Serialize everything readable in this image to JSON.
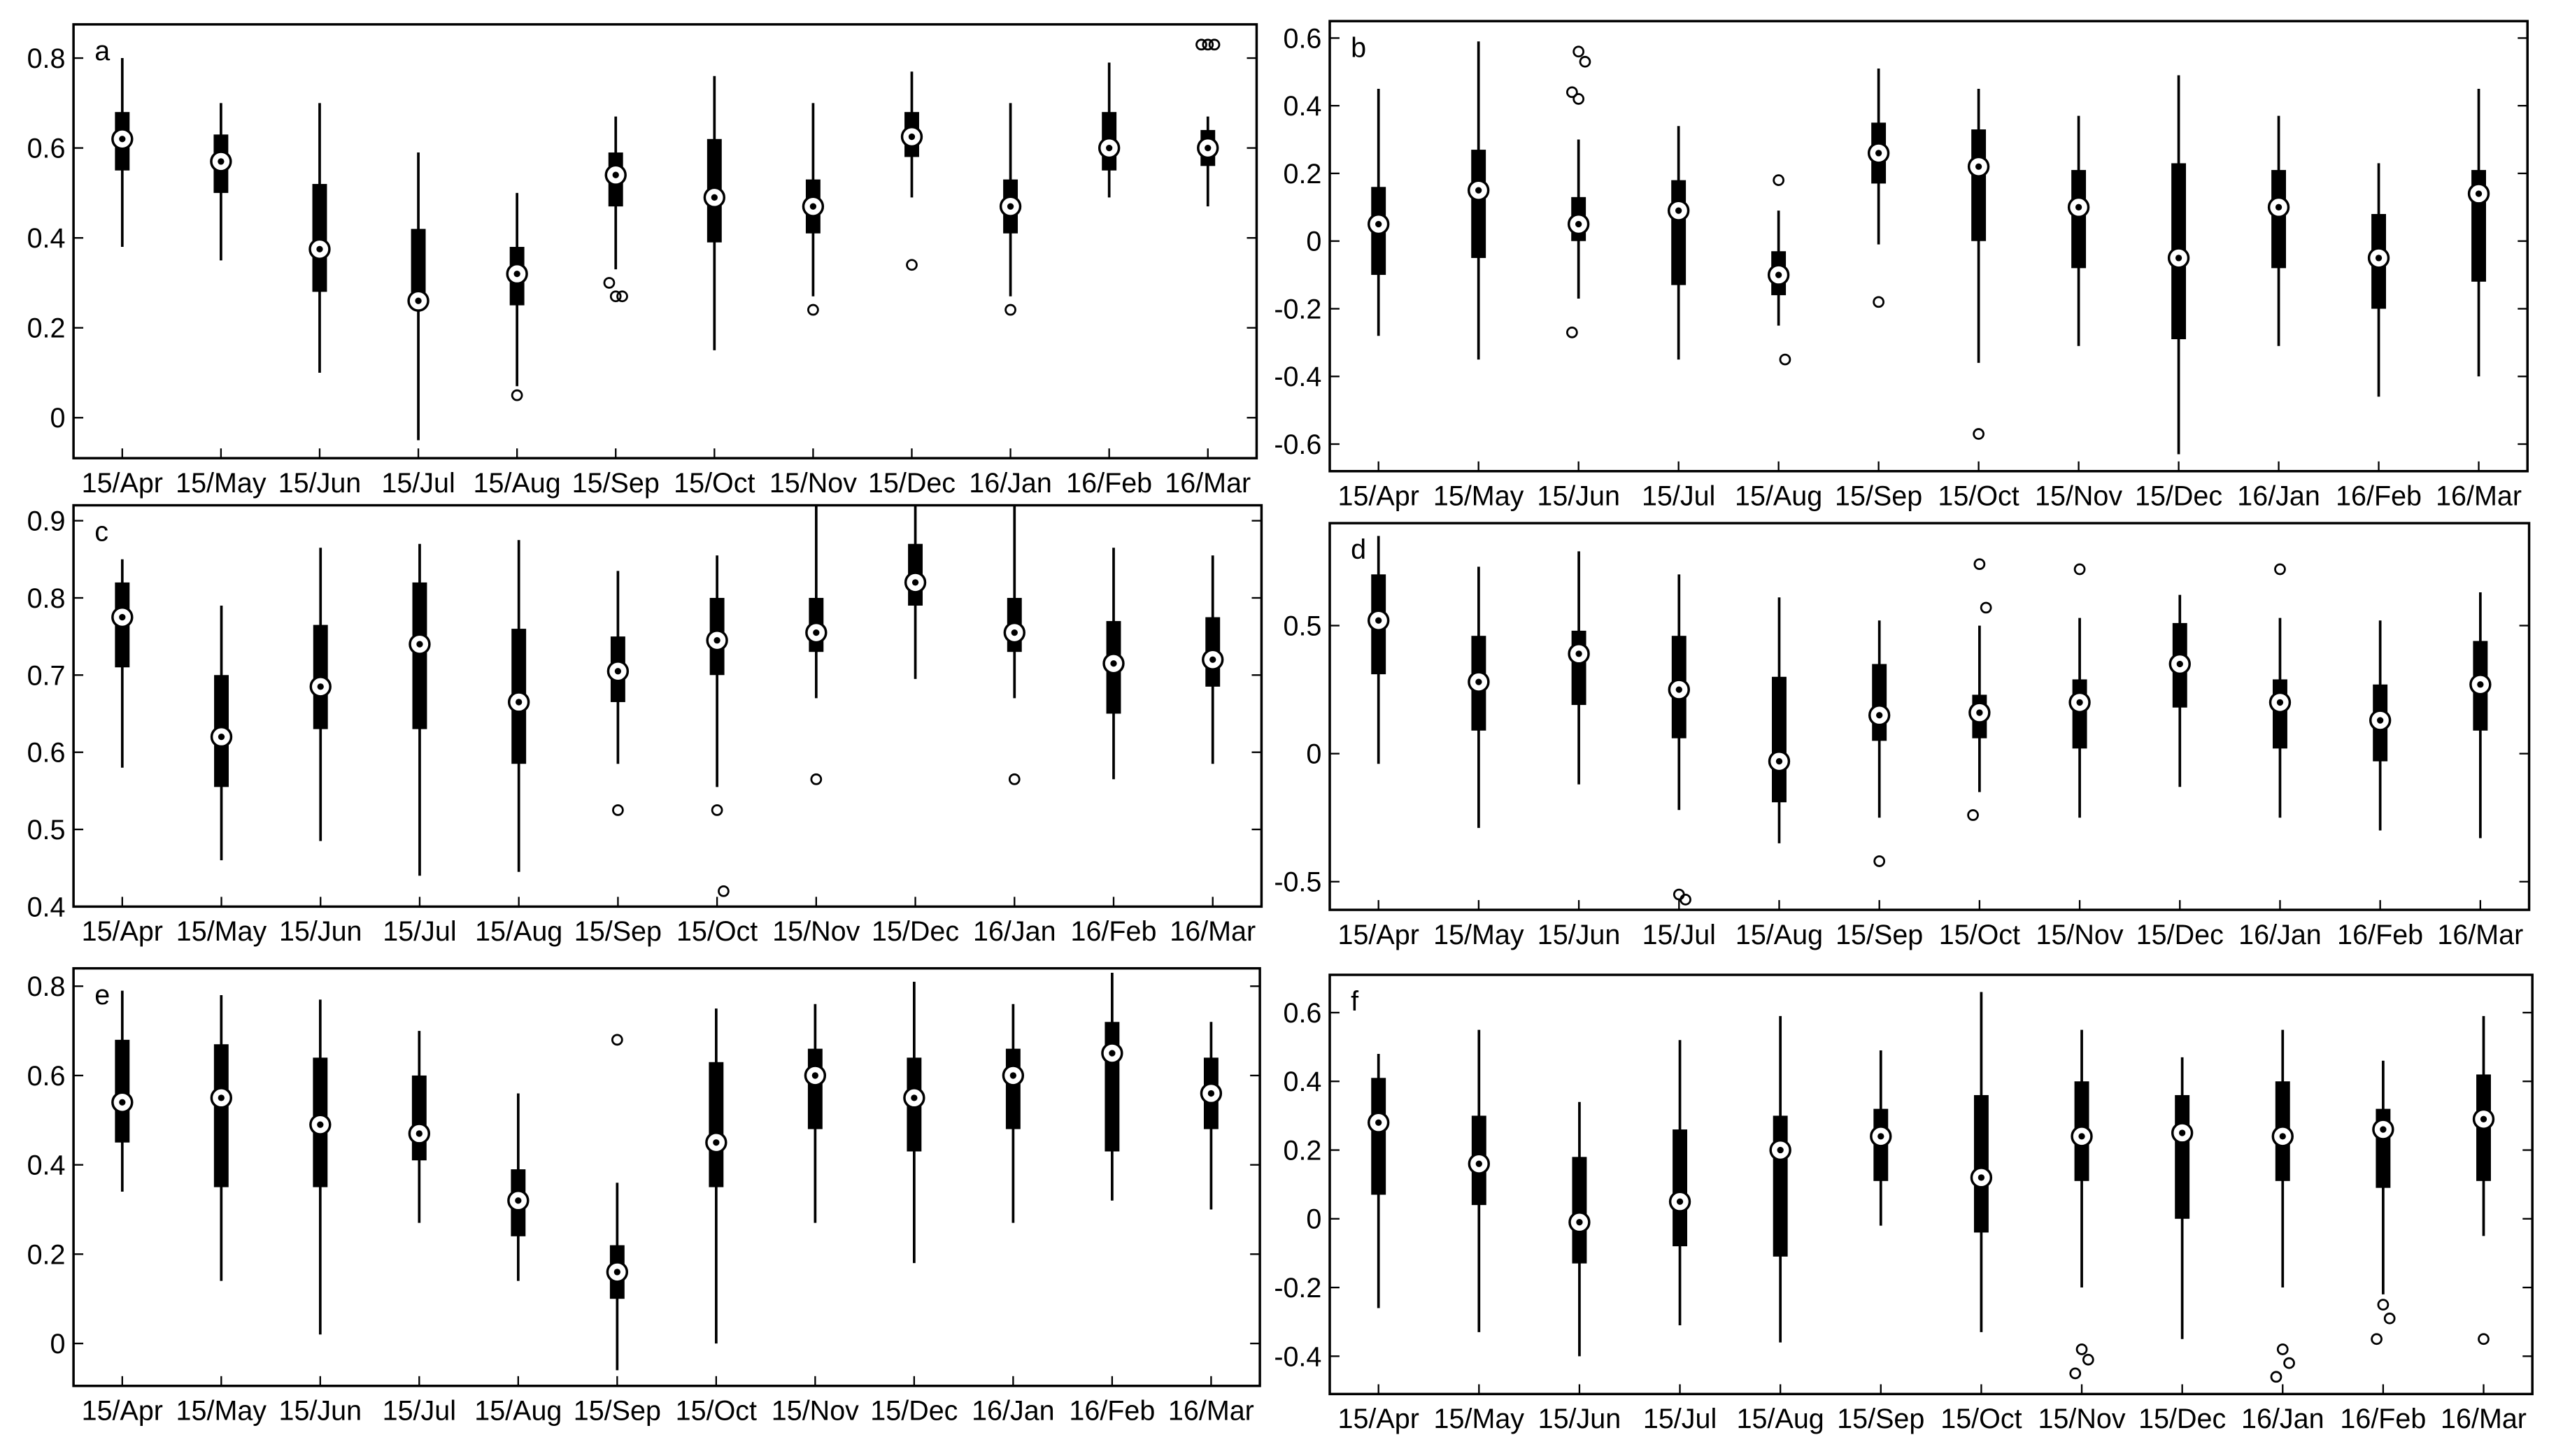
{
  "chart_data": [
    {
      "type": "box",
      "label": "a",
      "categories": [
        "15/Apr",
        "15/May",
        "15/Jun",
        "15/Jul",
        "15/Aug",
        "15/Sep",
        "15/Oct",
        "15/Nov",
        "15/Dec",
        "16/Jan",
        "16/Feb",
        "16/Mar"
      ],
      "ylim": [
        -0.09,
        0.875
      ],
      "yticks": [
        0,
        0.2,
        0.4,
        0.6,
        0.8
      ],
      "low": [
        0.38,
        0.35,
        0.1,
        -0.05,
        0.07,
        0.33,
        0.15,
        0.27,
        0.49,
        0.27,
        0.49,
        0.47
      ],
      "q1": [
        0.55,
        0.5,
        0.28,
        0.25,
        0.25,
        0.47,
        0.39,
        0.41,
        0.58,
        0.41,
        0.55,
        0.56
      ],
      "median": [
        0.62,
        0.57,
        0.375,
        0.26,
        0.32,
        0.54,
        0.49,
        0.47,
        0.625,
        0.47,
        0.6,
        0.6
      ],
      "q3": [
        0.68,
        0.63,
        0.52,
        0.42,
        0.38,
        0.59,
        0.62,
        0.53,
        0.68,
        0.53,
        0.68,
        0.64
      ],
      "high": [
        0.8,
        0.7,
        0.7,
        0.59,
        0.5,
        0.67,
        0.76,
        0.7,
        0.77,
        0.7,
        0.79,
        0.67
      ],
      "outliers": [
        [],
        [],
        [],
        [],
        [
          0.05
        ],
        [
          0.27,
          0.27,
          0.3
        ],
        [],
        [
          0.24
        ],
        [
          0.34
        ],
        [
          0.24
        ],
        [],
        [
          0.83,
          0.83,
          0.83
        ]
      ]
    },
    {
      "type": "box",
      "label": "b",
      "categories": [
        "15/Apr",
        "15/May",
        "15/Jun",
        "15/Jul",
        "15/Aug",
        "15/Sep",
        "15/Oct",
        "15/Nov",
        "15/Dec",
        "16/Jan",
        "16/Feb",
        "16/Mar"
      ],
      "ylim": [
        -0.68,
        0.65
      ],
      "yticks": [
        -0.6,
        -0.4,
        -0.2,
        0,
        0.2,
        0.4,
        0.6
      ],
      "low": [
        -0.28,
        -0.35,
        -0.17,
        -0.35,
        -0.25,
        -0.01,
        -0.36,
        -0.31,
        -0.63,
        -0.31,
        -0.46,
        -0.4
      ],
      "q1": [
        -0.1,
        -0.05,
        0.0,
        -0.13,
        -0.16,
        0.17,
        0.0,
        -0.08,
        -0.29,
        -0.08,
        -0.2,
        -0.12
      ],
      "median": [
        0.05,
        0.15,
        0.05,
        0.09,
        -0.1,
        0.26,
        0.22,
        0.1,
        -0.05,
        0.1,
        -0.05,
        0.14
      ],
      "q3": [
        0.16,
        0.27,
        0.13,
        0.18,
        -0.03,
        0.35,
        0.33,
        0.21,
        0.23,
        0.21,
        0.08,
        0.21
      ],
      "high": [
        0.45,
        0.59,
        0.3,
        0.34,
        0.09,
        0.51,
        0.45,
        0.37,
        0.49,
        0.37,
        0.23,
        0.45
      ],
      "outliers": [
        [],
        [],
        [
          0.56,
          0.53,
          0.44,
          0.42,
          -0.27
        ],
        [],
        [
          0.18,
          -0.35
        ],
        [
          -0.18
        ],
        [
          -0.57
        ],
        [],
        [],
        [],
        [],
        []
      ]
    },
    {
      "type": "box",
      "label": "c",
      "categories": [
        "15/Apr",
        "15/May",
        "15/Jun",
        "15/Jul",
        "15/Aug",
        "15/Sep",
        "15/Oct",
        "15/Nov",
        "15/Dec",
        "16/Jan",
        "16/Feb",
        "16/Mar"
      ],
      "ylim": [
        0.4,
        0.92
      ],
      "yticks": [
        0.4,
        0.5,
        0.6,
        0.7,
        0.8,
        0.9
      ],
      "low": [
        0.58,
        0.46,
        0.485,
        0.44,
        0.445,
        0.585,
        0.555,
        0.67,
        0.695,
        0.67,
        0.565,
        0.585
      ],
      "q1": [
        0.71,
        0.555,
        0.63,
        0.63,
        0.585,
        0.665,
        0.7,
        0.73,
        0.79,
        0.73,
        0.65,
        0.685
      ],
      "median": [
        0.775,
        0.62,
        0.685,
        0.74,
        0.665,
        0.705,
        0.745,
        0.755,
        0.82,
        0.755,
        0.715,
        0.72
      ],
      "q3": [
        0.82,
        0.7,
        0.765,
        0.82,
        0.76,
        0.75,
        0.8,
        0.8,
        0.87,
        0.8,
        0.77,
        0.775
      ],
      "high": [
        0.85,
        0.79,
        0.865,
        0.87,
        0.875,
        0.835,
        0.855,
        0.92,
        0.92,
        0.92,
        0.865,
        0.855
      ],
      "outliers": [
        [],
        [],
        [],
        [],
        [],
        [
          0.525
        ],
        [
          0.525,
          0.42
        ],
        [
          0.565
        ],
        [],
        [
          0.565
        ],
        [],
        []
      ]
    },
    {
      "type": "box",
      "label": "d",
      "categories": [
        "15/Apr",
        "15/May",
        "15/Jun",
        "15/Jul",
        "15/Aug",
        "15/Sep",
        "15/Oct",
        "15/Nov",
        "15/Dec",
        "16/Jan",
        "16/Feb",
        "16/Mar"
      ],
      "ylim": [
        -0.61,
        0.9
      ],
      "yticks": [
        -0.5,
        0,
        0.5
      ],
      "low": [
        -0.04,
        -0.29,
        -0.12,
        -0.22,
        -0.35,
        -0.25,
        -0.15,
        -0.25,
        -0.13,
        -0.25,
        -0.3,
        -0.33
      ],
      "q1": [
        0.31,
        0.09,
        0.19,
        0.06,
        -0.19,
        0.05,
        0.06,
        0.02,
        0.18,
        0.02,
        -0.03,
        0.09
      ],
      "median": [
        0.52,
        0.28,
        0.39,
        0.25,
        -0.03,
        0.15,
        0.16,
        0.2,
        0.35,
        0.2,
        0.13,
        0.27
      ],
      "q3": [
        0.7,
        0.46,
        0.48,
        0.46,
        0.3,
        0.35,
        0.23,
        0.29,
        0.51,
        0.29,
        0.27,
        0.44
      ],
      "high": [
        0.85,
        0.73,
        0.79,
        0.7,
        0.61,
        0.52,
        0.5,
        0.53,
        0.62,
        0.53,
        0.52,
        0.63
      ],
      "outliers": [
        [],
        [],
        [],
        [
          -0.55,
          -0.57
        ],
        [],
        [
          -0.42
        ],
        [
          0.74,
          0.57,
          -0.24
        ],
        [
          0.72
        ],
        [],
        [
          0.72
        ],
        [],
        []
      ]
    },
    {
      "type": "box",
      "label": "e",
      "categories": [
        "15/Apr",
        "15/May",
        "15/Jun",
        "15/Jul",
        "15/Aug",
        "15/Sep",
        "15/Oct",
        "15/Nov",
        "15/Dec",
        "16/Jan",
        "16/Feb",
        "16/Mar"
      ],
      "ylim": [
        -0.095,
        0.84
      ],
      "yticks": [
        0,
        0.2,
        0.4,
        0.6,
        0.8
      ],
      "low": [
        0.34,
        0.14,
        0.02,
        0.27,
        0.14,
        -0.06,
        0.0,
        0.27,
        0.18,
        0.27,
        0.32,
        0.3
      ],
      "q1": [
        0.45,
        0.35,
        0.35,
        0.41,
        0.24,
        0.1,
        0.35,
        0.48,
        0.43,
        0.48,
        0.43,
        0.48
      ],
      "median": [
        0.54,
        0.55,
        0.49,
        0.47,
        0.32,
        0.16,
        0.45,
        0.6,
        0.55,
        0.6,
        0.65,
        0.56
      ],
      "q3": [
        0.68,
        0.67,
        0.64,
        0.6,
        0.39,
        0.22,
        0.63,
        0.66,
        0.64,
        0.66,
        0.72,
        0.64
      ],
      "high": [
        0.79,
        0.78,
        0.77,
        0.7,
        0.56,
        0.36,
        0.75,
        0.76,
        0.81,
        0.76,
        0.83,
        0.72
      ],
      "outliers": [
        [],
        [],
        [],
        [],
        [],
        [
          0.68
        ],
        [],
        [],
        [],
        [],
        [],
        []
      ]
    },
    {
      "type": "box",
      "label": "f",
      "categories": [
        "15/Apr",
        "15/May",
        "15/Jun",
        "15/Jul",
        "15/Aug",
        "15/Sep",
        "15/Oct",
        "15/Nov",
        "15/Dec",
        "16/Jan",
        "16/Feb",
        "16/Mar"
      ],
      "ylim": [
        -0.51,
        0.71
      ],
      "yticks": [
        -0.4,
        -0.2,
        0,
        0.2,
        0.4,
        0.6
      ],
      "low": [
        -0.26,
        -0.33,
        -0.4,
        -0.31,
        -0.36,
        -0.02,
        -0.33,
        -0.2,
        -0.35,
        -0.2,
        -0.22,
        -0.05
      ],
      "q1": [
        0.07,
        0.04,
        -0.13,
        -0.08,
        -0.11,
        0.11,
        -0.04,
        0.11,
        0.0,
        0.11,
        0.09,
        0.11
      ],
      "median": [
        0.28,
        0.16,
        -0.01,
        0.05,
        0.2,
        0.24,
        0.12,
        0.24,
        0.25,
        0.24,
        0.26,
        0.29
      ],
      "q3": [
        0.41,
        0.3,
        0.18,
        0.26,
        0.3,
        0.32,
        0.36,
        0.4,
        0.36,
        0.4,
        0.32,
        0.42
      ],
      "high": [
        0.48,
        0.55,
        0.34,
        0.52,
        0.59,
        0.49,
        0.66,
        0.55,
        0.47,
        0.55,
        0.46,
        0.59
      ],
      "outliers": [
        [],
        [],
        [],
        [],
        [],
        [],
        [],
        [
          -0.38,
          -0.41,
          -0.45
        ],
        [],
        [
          -0.38,
          -0.42,
          -0.46
        ],
        [
          -0.25,
          -0.29,
          -0.35
        ],
        [
          -0.35
        ]
      ]
    }
  ]
}
